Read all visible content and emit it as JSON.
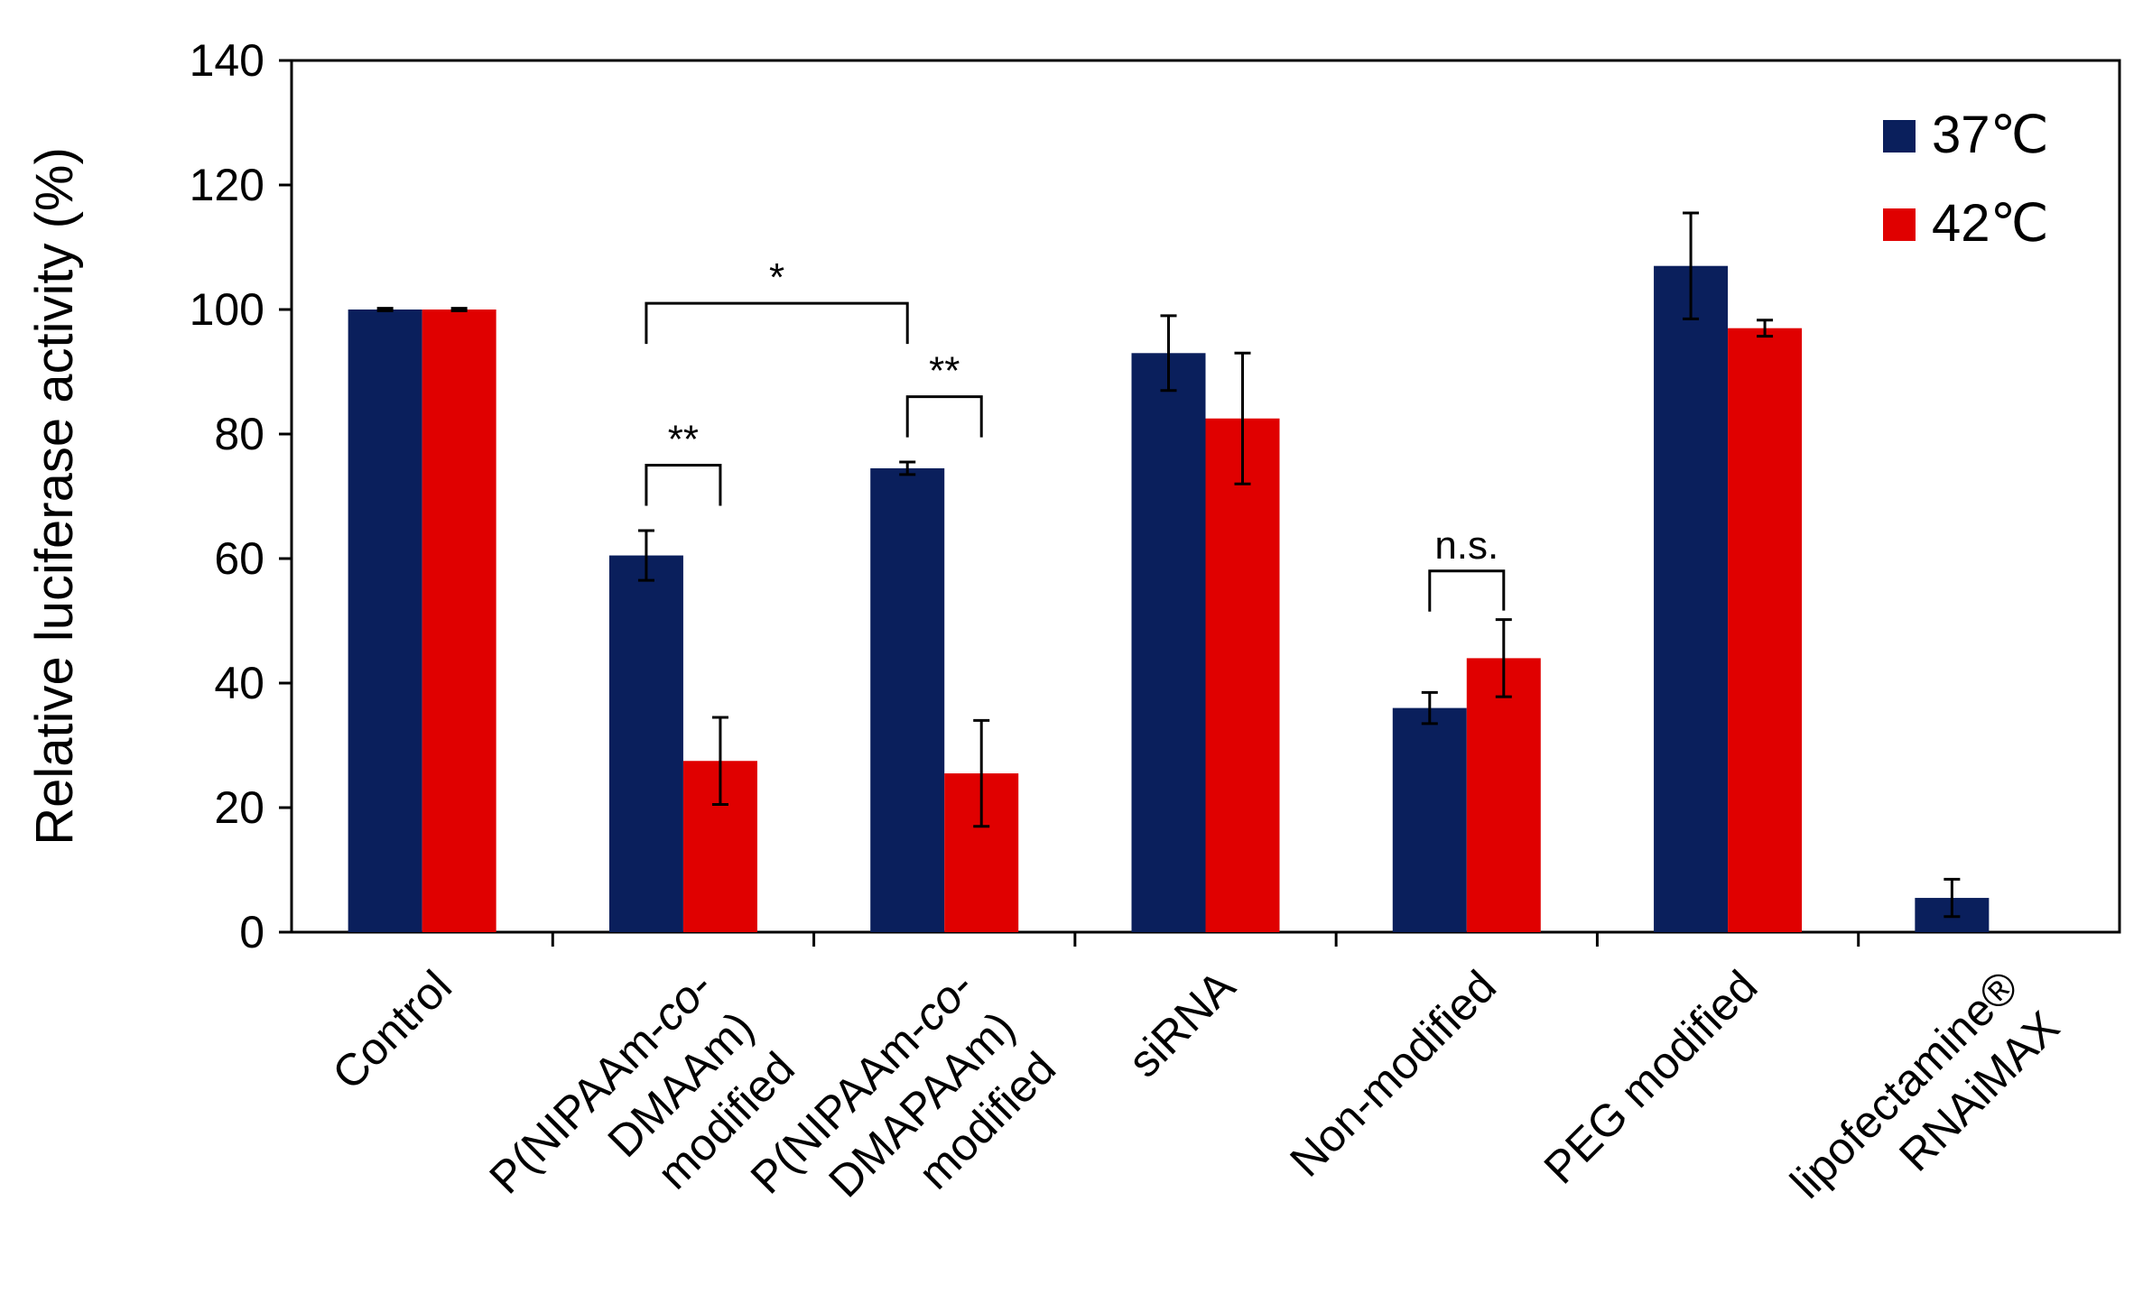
{
  "chart_data": {
    "type": "bar",
    "title": "",
    "xlabel": "",
    "ylabel": "Relative luciferase activity (%)",
    "ylim": [
      0,
      140
    ],
    "yticks": [
      "0",
      "20",
      "40",
      "60",
      "80",
      "100",
      "120",
      "140"
    ],
    "grid": false,
    "legend_position": "top-right",
    "categories": [
      {
        "lines": [
          "Control"
        ],
        "italic_word": ""
      },
      {
        "lines": [
          "P(NIPAAm-co-",
          "DMAAm)",
          "modified"
        ],
        "italic_word": "co"
      },
      {
        "lines": [
          "P(NIPAAm-co-",
          "DMAPAAm)",
          "modified"
        ],
        "italic_word": "co"
      },
      {
        "lines": [
          "siRNA"
        ],
        "italic_word": ""
      },
      {
        "lines": [
          "Non-modified"
        ],
        "italic_word": ""
      },
      {
        "lines": [
          "PEG modified"
        ],
        "italic_word": ""
      },
      {
        "lines": [
          "lipofectamine®",
          "RNAiMAX"
        ],
        "italic_word": ""
      }
    ],
    "series": [
      {
        "name": "37℃",
        "color": "#0a1f5c",
        "values": [
          100,
          60.5,
          74.5,
          93,
          36,
          107,
          5.5
        ],
        "errors": [
          0.2,
          4,
          1,
          6,
          2.5,
          8.5,
          3
        ]
      },
      {
        "name": "42℃",
        "color": "#e00000",
        "values": [
          100,
          27.5,
          25.5,
          82.5,
          44,
          97,
          null
        ],
        "errors": [
          0.2,
          7,
          8.5,
          10.5,
          6.2,
          1.3,
          null
        ]
      }
    ],
    "annotations": [
      {
        "type": "bracket",
        "label": "**",
        "from": {
          "category": 1,
          "series": 0
        },
        "to": {
          "category": 1,
          "series": 1
        },
        "level": 75
      },
      {
        "type": "bracket",
        "label": "**",
        "from": {
          "category": 2,
          "series": 0
        },
        "to": {
          "category": 2,
          "series": 1
        },
        "level": 86
      },
      {
        "type": "bracket",
        "label": "*",
        "from": {
          "category": 1,
          "series": 0
        },
        "to": {
          "category": 2,
          "series": 0
        },
        "level": 101
      },
      {
        "type": "bracket",
        "label": "n.s.",
        "from": {
          "category": 4,
          "series": 0
        },
        "to": {
          "category": 4,
          "series": 1
        },
        "level": 58
      }
    ]
  }
}
